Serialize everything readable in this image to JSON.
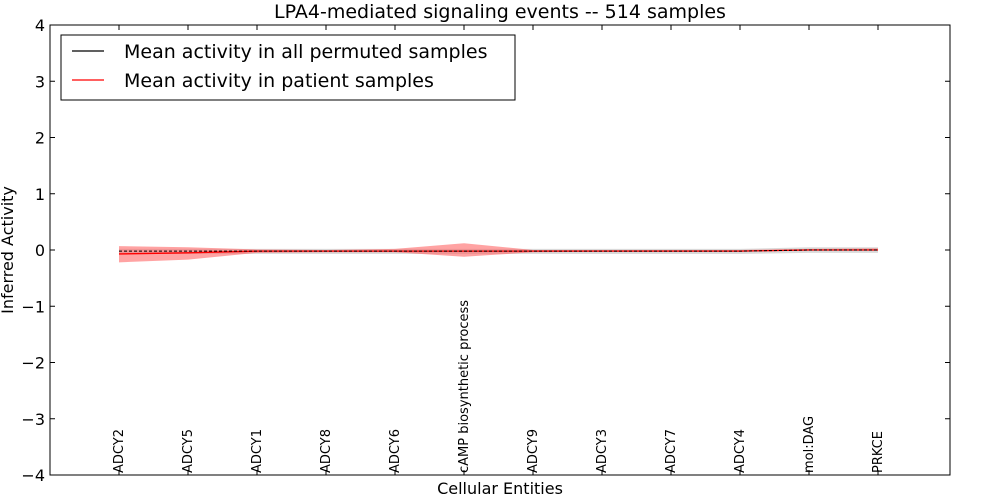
{
  "chart_data": {
    "type": "line",
    "title": "LPA4-mediated signaling events -- 514 samples",
    "xlabel": "Cellular Entities",
    "ylabel": "Inferred Activity",
    "ylim": [
      -4,
      4
    ],
    "yticks": [
      4,
      3,
      2,
      1,
      0,
      -1,
      -2,
      -3,
      -4
    ],
    "ytick_labels": [
      "4",
      "3",
      "2",
      "1",
      "0",
      "−1",
      "−2",
      "−3",
      "−4"
    ],
    "grid": false,
    "legend_position": "top-left",
    "categories": [
      "ADCY2",
      "ADCY5",
      "ADCY1",
      "ADCY8",
      "ADCY6",
      "cAMP biosynthetic process",
      "ADCY9",
      "ADCY3",
      "ADCY7",
      "ADCY4",
      "mol:DAG",
      "PRKCE"
    ],
    "series": [
      {
        "name": "Mean activity in all permuted samples",
        "color": "#000000",
        "band_color": "#bbbbbb",
        "values": [
          -0.02,
          -0.02,
          -0.02,
          -0.02,
          -0.02,
          -0.02,
          -0.02,
          -0.02,
          -0.02,
          -0.02,
          0.0,
          0.0
        ],
        "lower": [
          -0.07,
          -0.07,
          -0.07,
          -0.07,
          -0.07,
          -0.07,
          -0.07,
          -0.07,
          -0.07,
          -0.07,
          -0.05,
          -0.05
        ],
        "upper": [
          0.02,
          0.02,
          0.02,
          0.02,
          0.02,
          0.02,
          0.02,
          0.02,
          0.02,
          0.02,
          0.05,
          0.05
        ]
      },
      {
        "name": "Mean activity in patient samples",
        "color": "#ff0000",
        "band_color": "#ff6666",
        "values": [
          -0.07,
          -0.05,
          -0.02,
          -0.02,
          -0.02,
          -0.02,
          -0.02,
          -0.02,
          -0.02,
          -0.02,
          0.0,
          0.0
        ],
        "lower": [
          -0.22,
          -0.17,
          -0.05,
          -0.04,
          -0.04,
          -0.12,
          -0.04,
          -0.03,
          -0.03,
          -0.03,
          -0.01,
          -0.01
        ],
        "upper": [
          0.07,
          0.05,
          0.01,
          0.0,
          0.02,
          0.12,
          0.0,
          0.0,
          0.0,
          0.0,
          0.02,
          0.03
        ]
      }
    ]
  }
}
